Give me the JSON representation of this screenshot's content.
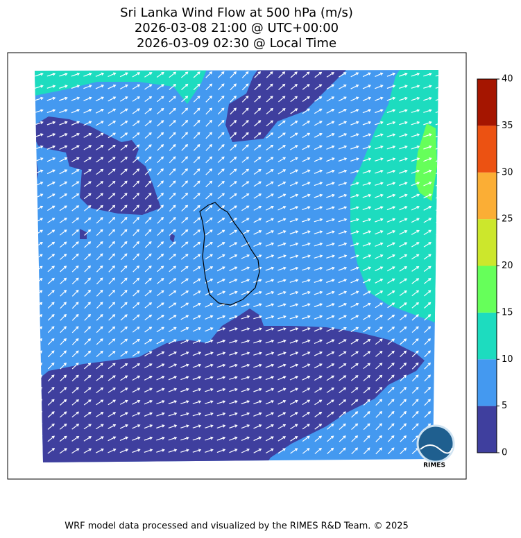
{
  "title": [
    "Sri Lanka Wind Flow at 500 hPa (m/s)",
    "2026-03-08 21:00 @ UTC+00:00",
    "2026-03-09 02:30 @ Local Time"
  ],
  "colorbar": {
    "ticks": [
      0,
      5,
      10,
      15,
      20,
      25,
      30,
      35,
      40
    ],
    "colors": [
      "#3f3f9e",
      "#4499f0",
      "#1ddcbf",
      "#66ff5a",
      "#cce72c",
      "#fbae35",
      "#ec5212",
      "#a51500"
    ]
  },
  "logo": "RIMES",
  "footer": "WRF model data processed and visualized by the RIMES R&D Team. © 2025"
}
